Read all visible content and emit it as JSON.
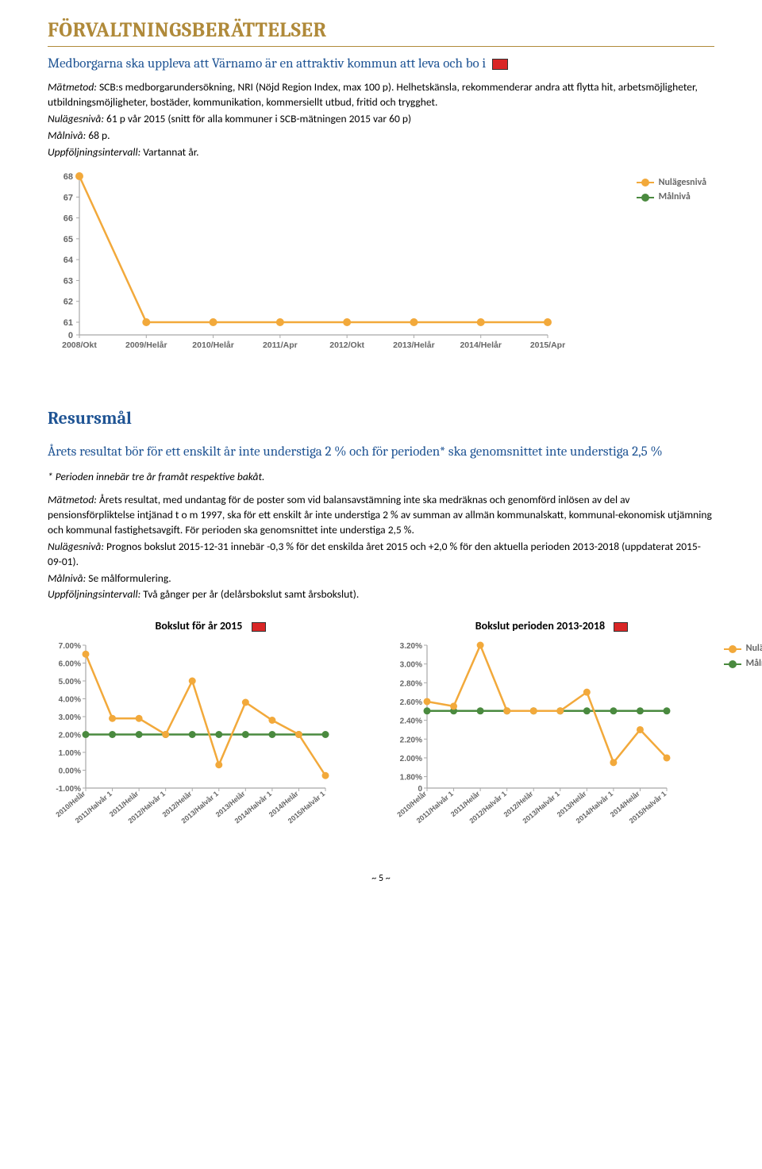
{
  "page_title": "FÖRVALTNINGSBERÄTTELSER",
  "subheading1": "Medborgarna ska uppleva att Värnamo är en attraktiv kommun att leva och bo i",
  "block1": {
    "matmetod_label": "Mätmetod:",
    "matmetod_value": "SCB:s medborgarundersökning, NRI (Nöjd Region Index, max 100 p). Helhetskänsla, rekommenderar andra att flytta hit, arbetsmöjligheter, utbildningsmöjligheter, bostäder, kommunikation, kommersiellt utbud, fritid och trygghet.",
    "nulagesniva_label": "Nulägesnivå:",
    "nulagesniva_value": "61 p vår 2015 (snitt för alla kommuner i SCB-mätningen 2015 var 60 p)",
    "malniva_label": "Målnivå:",
    "malniva_value": "68 p.",
    "intervall_label": "Uppföljningsintervall:",
    "intervall_value": "Vartannat år."
  },
  "chart1": {
    "type": "line",
    "ylim": [
      0,
      68
    ],
    "yticks": [
      0,
      61,
      62,
      63,
      64,
      65,
      66,
      67,
      68
    ],
    "xlabels": [
      "2008/Okt",
      "2009/Helår",
      "2010/Helår",
      "2011/Apr",
      "2012/Okt",
      "2013/Helår",
      "2014/Helår",
      "2015/Apr"
    ],
    "nulages_color": "#f2a93b",
    "nulages_data": [
      68,
      61,
      61,
      61,
      61,
      61,
      61,
      61
    ],
    "legend_nulages": "Nulägesnivå",
    "legend_malniva": "Målnivå",
    "axis_color": "#a8a8a8",
    "grid_off": true
  },
  "resursmal_heading": "Resursmål",
  "subheading2": "Årets resultat bör för ett enskilt år inte understiga 2 % och för perioden* ska genomsnittet inte understiga 2,5 %",
  "footnote": "* Perioden innebär tre år framåt respektive bakåt.",
  "block2": {
    "matmetod_label": "Mätmetod:",
    "matmetod_value": "Årets resultat, med undantag för de poster som vid balansavstämning inte ska medräknas och genomförd inlösen av del av pensionsförpliktelse intjänad t o m 1997, ska för ett enskilt år inte understiga 2 % av summan av allmän kommunalskatt, kommunal-ekonomisk utjämning och kommunal fastighetsavgift. För perioden ska genomsnittet inte understiga 2,5 %.",
    "nulagesniva_label": "Nulägesnivå:",
    "nulagesniva_value": "Prognos bokslut 2015-12-31 innebär -0,3 % för det enskilda året 2015 och +2,0 % för den aktuella perioden 2013-2018 (uppdaterat 2015-09-01).",
    "malniva_label": "Målnivå:",
    "malniva_value": "Se målformulering.",
    "intervall_label": "Uppföljningsintervall:",
    "intervall_value": "Två gånger per år (delårsbokslut samt årsbokslut)."
  },
  "chart2": {
    "title": "Bokslut för år 2015",
    "type": "line",
    "ylim": [
      -1,
      7
    ],
    "yticks": [
      "-1.00%",
      "0.00%",
      "1.00%",
      "2.00%",
      "3.00%",
      "4.00%",
      "5.00%",
      "6.00%",
      "7.00%"
    ],
    "xlabels": [
      "2010/Helår",
      "2011/Halvår 1",
      "2011/Helår",
      "2012/Halvår 1",
      "2012/Helår",
      "2013/Halvår 1",
      "2013/Helår",
      "2014/Halvår 1",
      "2014/Helår",
      "2015/Halvår 1"
    ],
    "nulages_color": "#f2a93b",
    "malniva_color": "#4a8a3f",
    "nulages_data": [
      6.5,
      2.9,
      2.9,
      2.0,
      5.0,
      0.3,
      3.8,
      2.8,
      2.0,
      -0.3
    ],
    "malniva_data": [
      2.0,
      2.0,
      2.0,
      2.0,
      2.0,
      2.0,
      2.0,
      2.0,
      2.0,
      2.0
    ],
    "axis_color": "#a8a8a8"
  },
  "chart3": {
    "title": "Bokslut perioden 2013-2018",
    "type": "line",
    "ylim": [
      0,
      3.2
    ],
    "yticks_lbl": [
      "0",
      "1.80%",
      "2.00%",
      "2.20%",
      "2.40%",
      "2.60%",
      "2.80%",
      "3.00%",
      "3.20%"
    ],
    "yticks_val": [
      0,
      1.8,
      2.0,
      2.2,
      2.4,
      2.6,
      2.8,
      3.0,
      3.2
    ],
    "xlabels": [
      "2010/Helår",
      "2011/Halvår 1",
      "2011/Helår",
      "2012/Halvår 1",
      "2012/Helår",
      "2013/Halvår 1",
      "2013/Helår",
      "2014/Halvår 1",
      "2014/Helår",
      "2015/Halvår 1"
    ],
    "nulages_color": "#f2a93b",
    "malniva_color": "#4a8a3f",
    "nulages_data": [
      2.6,
      2.55,
      3.2,
      2.5,
      2.5,
      2.5,
      2.7,
      1.95,
      2.3,
      2.0
    ],
    "malniva_data": [
      2.5,
      2.5,
      2.5,
      2.5,
      2.5,
      2.5,
      2.5,
      2.5,
      2.5,
      2.5
    ],
    "legend_nulages": "Nulägesnivå",
    "legend_malniva": "Målnivå",
    "axis_color": "#a8a8a8"
  },
  "page_num": "~ 5 ~"
}
